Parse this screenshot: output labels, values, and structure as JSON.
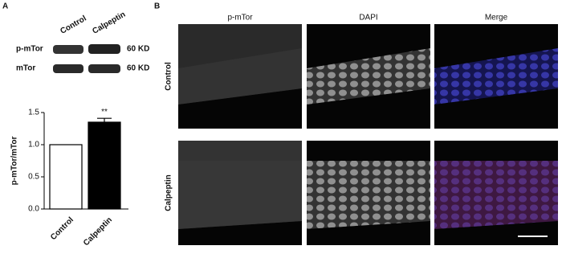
{
  "panel_a": {
    "label": "A",
    "blot": {
      "lanes": [
        "Control",
        "Calpeptin"
      ],
      "rows": [
        {
          "name": "p-mTor",
          "size": "60 KD"
        },
        {
          "name": "mTor",
          "size": "60 KD"
        }
      ]
    }
  },
  "chart_data": {
    "type": "bar",
    "ylabel": "p-mTor/mTor",
    "categories": [
      "Control",
      "Calpeptin"
    ],
    "values": [
      1.0,
      1.35
    ],
    "errors": [
      null,
      0.06
    ],
    "significance": [
      null,
      "**"
    ],
    "colors": [
      "#ffffff",
      "#000000"
    ],
    "ylim": [
      0,
      1.5
    ],
    "yticks": [
      {
        "value": 0,
        "label": "0.0"
      },
      0.5,
      {
        "value": 1,
        "label": "1.0"
      },
      1.5
    ]
  },
  "panel_b": {
    "label": "B",
    "columns": [
      "p-mTor",
      "DAPI",
      "Merge"
    ],
    "rows": [
      "Control",
      "Calpeptin"
    ]
  }
}
